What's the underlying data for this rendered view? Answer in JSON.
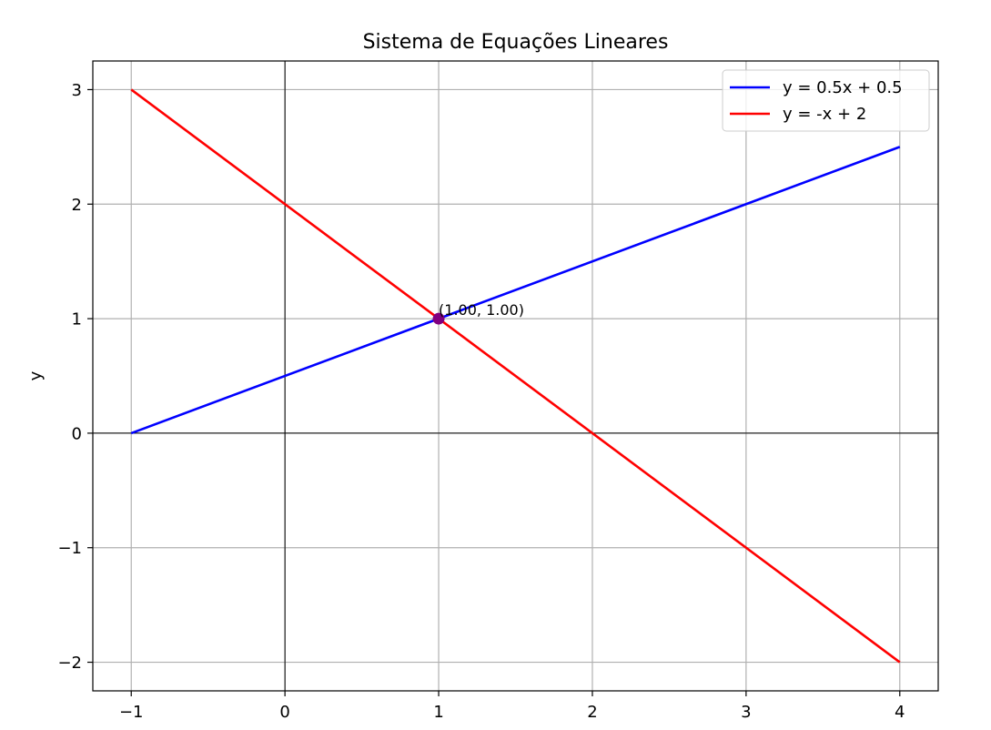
{
  "chart_data": {
    "type": "line",
    "title": "Sistema de Equações Lineares",
    "xlabel": "",
    "ylabel": "y",
    "xlim": [
      -1.25,
      4.25
    ],
    "ylim": [
      -2.25,
      3.25
    ],
    "x_ticks": [
      -1,
      0,
      1,
      2,
      3,
      4
    ],
    "y_ticks": [
      -2,
      -1,
      0,
      1,
      2,
      3
    ],
    "x_tick_labels": [
      "−1",
      "0",
      "1",
      "2",
      "3",
      "4"
    ],
    "y_tick_labels": [
      "−2",
      "−1",
      "0",
      "1",
      "2",
      "3"
    ],
    "grid": true,
    "axis_lines_at_zero": true,
    "legend_position": "top-right",
    "series": [
      {
        "name": "y = 0.5x + 0.5",
        "color": "#0000ff",
        "x": [
          -1,
          4
        ],
        "y": [
          0,
          2.5
        ]
      },
      {
        "name": "y = -x + 2",
        "color": "#ff0000",
        "x": [
          -1,
          4
        ],
        "y": [
          3,
          -2
        ]
      }
    ],
    "points": [
      {
        "x": 1,
        "y": 1,
        "label": "(1.00, 1.00)",
        "color": "#800080"
      }
    ]
  }
}
